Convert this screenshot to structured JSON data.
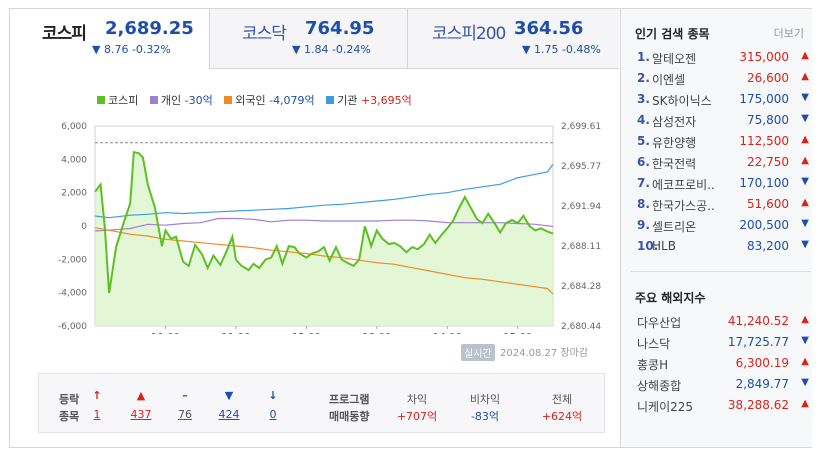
{
  "tabs": [
    {
      "name": "코스피",
      "value": "2,689.25",
      "change": "▼ 8.76 -0.32%",
      "active": true
    },
    {
      "name": "코스닥",
      "value": "764.95",
      "change": "▼ 1.84 -0.24%",
      "active": false
    },
    {
      "name": "코스피200",
      "value": "364.56",
      "change": "▼ 1.75 -0.48%",
      "active": false
    }
  ],
  "legend": [
    {
      "label": "코스피",
      "value": "",
      "color": "#5cc120"
    },
    {
      "label": "개인",
      "value": "-30억",
      "color": "#a07ed0",
      "sign": "neg"
    },
    {
      "label": "외국인",
      "value": "-4,079억",
      "color": "#f08a24",
      "sign": "neg"
    },
    {
      "label": "기관",
      "value": "+3,695억",
      "color": "#3d9ce0",
      "sign": "pos"
    }
  ],
  "chart_data": {
    "type": "line",
    "x_ticks": [
      "10:00",
      "11:00",
      "12:00",
      "13:00",
      "14:00",
      "15:00"
    ],
    "y_left_ticks": [
      "6,000",
      "4,000",
      "2,000",
      "0",
      "-2,000",
      "-4,000",
      "-6,000"
    ],
    "y_right_ticks": [
      "2,699.61",
      "2,695.77",
      "2,691.94",
      "2,688.11",
      "2,684.28",
      "2,680.44"
    ],
    "y_left_range": [
      -6000,
      6000
    ],
    "y_right_range": [
      2680.44,
      2699.61
    ],
    "x_range_hours": [
      9.0,
      15.5
    ],
    "reference_line": 2698.0,
    "series": [
      {
        "name": "코스피",
        "axis": "right",
        "color": "#5cc120",
        "fill": "#d9f3c8",
        "points": [
          [
            9.0,
            2693.3
          ],
          [
            9.08,
            2694.0
          ],
          [
            9.14,
            2689.8
          ],
          [
            9.2,
            2683.6
          ],
          [
            9.3,
            2688.0
          ],
          [
            9.4,
            2690.2
          ],
          [
            9.5,
            2692.2
          ],
          [
            9.55,
            2697.1
          ],
          [
            9.62,
            2697.0
          ],
          [
            9.68,
            2696.6
          ],
          [
            9.75,
            2694.0
          ],
          [
            9.85,
            2691.8
          ],
          [
            9.95,
            2688.1
          ],
          [
            10.0,
            2689.6
          ],
          [
            10.08,
            2688.8
          ],
          [
            10.15,
            2689.0
          ],
          [
            10.25,
            2686.6
          ],
          [
            10.33,
            2686.2
          ],
          [
            10.42,
            2688.2
          ],
          [
            10.52,
            2687.3
          ],
          [
            10.6,
            2686.0
          ],
          [
            10.68,
            2687.2
          ],
          [
            10.78,
            2686.3
          ],
          [
            10.86,
            2687.5
          ],
          [
            10.95,
            2689.0
          ],
          [
            11.0,
            2686.8
          ],
          [
            11.08,
            2686.2
          ],
          [
            11.18,
            2685.8
          ],
          [
            11.25,
            2686.4
          ],
          [
            11.33,
            2686.0
          ],
          [
            11.42,
            2686.8
          ],
          [
            11.5,
            2687.0
          ],
          [
            11.58,
            2688.1
          ],
          [
            11.66,
            2686.4
          ],
          [
            11.75,
            2688.1
          ],
          [
            11.83,
            2688.0
          ],
          [
            11.9,
            2687.4
          ],
          [
            12.0,
            2687.0
          ],
          [
            12.08,
            2687.4
          ],
          [
            12.17,
            2687.6
          ],
          [
            12.25,
            2688.0
          ],
          [
            12.33,
            2686.7
          ],
          [
            12.42,
            2688.0
          ],
          [
            12.5,
            2686.8
          ],
          [
            12.58,
            2686.5
          ],
          [
            12.67,
            2686.2
          ],
          [
            12.75,
            2686.8
          ],
          [
            12.83,
            2690.0
          ],
          [
            12.92,
            2688.1
          ],
          [
            13.0,
            2689.6
          ],
          [
            13.08,
            2688.8
          ],
          [
            13.17,
            2688.3
          ],
          [
            13.25,
            2688.4
          ],
          [
            13.33,
            2688.1
          ],
          [
            13.42,
            2687.5
          ],
          [
            13.5,
            2688.0
          ],
          [
            13.58,
            2687.8
          ],
          [
            13.67,
            2688.3
          ],
          [
            13.75,
            2689.2
          ],
          [
            13.83,
            2688.4
          ],
          [
            13.92,
            2689.2
          ],
          [
            14.0,
            2689.8
          ],
          [
            14.08,
            2690.5
          ],
          [
            14.17,
            2691.8
          ],
          [
            14.25,
            2692.8
          ],
          [
            14.33,
            2691.8
          ],
          [
            14.42,
            2690.7
          ],
          [
            14.5,
            2690.3
          ],
          [
            14.58,
            2691.2
          ],
          [
            14.67,
            2690.3
          ],
          [
            14.75,
            2689.4
          ],
          [
            14.83,
            2690.3
          ],
          [
            14.92,
            2690.6
          ],
          [
            15.0,
            2690.3
          ],
          [
            15.08,
            2691.0
          ],
          [
            15.17,
            2690.0
          ],
          [
            15.25,
            2689.6
          ],
          [
            15.33,
            2689.8
          ],
          [
            15.42,
            2689.5
          ],
          [
            15.5,
            2689.3
          ]
        ]
      },
      {
        "name": "개인",
        "axis": "left",
        "color": "#a07ed0",
        "points": [
          [
            9.0,
            -300
          ],
          [
            9.2,
            -250
          ],
          [
            9.5,
            -150
          ],
          [
            9.75,
            100
          ],
          [
            10.0,
            50
          ],
          [
            10.25,
            150
          ],
          [
            10.5,
            200
          ],
          [
            10.75,
            450
          ],
          [
            11.0,
            450
          ],
          [
            11.25,
            400
          ],
          [
            11.5,
            250
          ],
          [
            11.75,
            350
          ],
          [
            12.0,
            350
          ],
          [
            12.25,
            300
          ],
          [
            12.5,
            300
          ],
          [
            12.75,
            300
          ],
          [
            13.0,
            300
          ],
          [
            13.25,
            350
          ],
          [
            13.5,
            350
          ],
          [
            13.75,
            300
          ],
          [
            14.0,
            200
          ],
          [
            14.25,
            200
          ],
          [
            14.5,
            200
          ],
          [
            14.75,
            200
          ],
          [
            15.0,
            150
          ],
          [
            15.25,
            100
          ],
          [
            15.5,
            -30
          ]
        ]
      },
      {
        "name": "외국인",
        "axis": "left",
        "color": "#f08a24",
        "points": [
          [
            9.0,
            -100
          ],
          [
            9.2,
            -250
          ],
          [
            9.5,
            -500
          ],
          [
            9.75,
            -600
          ],
          [
            10.0,
            -800
          ],
          [
            10.25,
            -900
          ],
          [
            10.5,
            -1000
          ],
          [
            10.75,
            -1100
          ],
          [
            11.0,
            -1200
          ],
          [
            11.25,
            -1300
          ],
          [
            11.5,
            -1450
          ],
          [
            11.75,
            -1550
          ],
          [
            12.0,
            -1650
          ],
          [
            12.25,
            -1800
          ],
          [
            12.5,
            -1900
          ],
          [
            12.75,
            -2050
          ],
          [
            13.0,
            -2200
          ],
          [
            13.25,
            -2300
          ],
          [
            13.5,
            -2500
          ],
          [
            13.75,
            -2700
          ],
          [
            14.0,
            -2900
          ],
          [
            14.25,
            -3100
          ],
          [
            14.5,
            -3200
          ],
          [
            14.75,
            -3350
          ],
          [
            15.0,
            -3500
          ],
          [
            15.25,
            -3650
          ],
          [
            15.42,
            -3750
          ],
          [
            15.5,
            -4079
          ]
        ]
      },
      {
        "name": "기관",
        "axis": "left",
        "color": "#3d9ce0",
        "points": [
          [
            9.0,
            600
          ],
          [
            9.2,
            500
          ],
          [
            9.5,
            650
          ],
          [
            9.75,
            700
          ],
          [
            10.0,
            800
          ],
          [
            10.25,
            750
          ],
          [
            10.5,
            800
          ],
          [
            10.75,
            850
          ],
          [
            11.0,
            900
          ],
          [
            11.25,
            950
          ],
          [
            11.5,
            1000
          ],
          [
            11.75,
            1050
          ],
          [
            12.0,
            1150
          ],
          [
            12.25,
            1250
          ],
          [
            12.5,
            1300
          ],
          [
            12.75,
            1400
          ],
          [
            13.0,
            1500
          ],
          [
            13.25,
            1600
          ],
          [
            13.5,
            1750
          ],
          [
            13.75,
            1900
          ],
          [
            14.0,
            2000
          ],
          [
            14.25,
            2200
          ],
          [
            14.5,
            2350
          ],
          [
            14.75,
            2500
          ],
          [
            15.0,
            2900
          ],
          [
            15.25,
            3100
          ],
          [
            15.42,
            3250
          ],
          [
            15.5,
            3695
          ]
        ]
      }
    ]
  },
  "realtime": {
    "badge": "실시간",
    "date": "2024.08.27 장마감"
  },
  "trade": {
    "label1": "등락",
    "label2": "종목",
    "counts": [
      {
        "symbol": "↑",
        "value": "1",
        "color": "#d8231a"
      },
      {
        "symbol": "▲",
        "value": "437",
        "color": "#d8231a"
      },
      {
        "symbol": "–",
        "value": "76",
        "color": "#555555"
      },
      {
        "symbol": "▼",
        "value": "424",
        "color": "#1d4ea8"
      },
      {
        "symbol": "↓",
        "value": "0",
        "color": "#1d4ea8"
      }
    ],
    "program_label1": "프로그램",
    "program_label2": "매매동향",
    "program": [
      {
        "label": "차익",
        "value": "+707억",
        "sign": "pos"
      },
      {
        "label": "비차익",
        "value": "-83억",
        "sign": "neg"
      },
      {
        "label": "전체",
        "value": "+624억",
        "sign": "pos"
      }
    ]
  },
  "popular": {
    "title": "인기 검색 종목",
    "more": "더보기",
    "items": [
      {
        "rank": "1.",
        "name": "알테오젠",
        "price": "315,000",
        "dir": "up"
      },
      {
        "rank": "2.",
        "name": "이엔셀",
        "price": "26,600",
        "dir": "up"
      },
      {
        "rank": "3.",
        "name": "SK하이닉스",
        "price": "175,000",
        "dir": "down"
      },
      {
        "rank": "4.",
        "name": "삼성전자",
        "price": "75,800",
        "dir": "down"
      },
      {
        "rank": "5.",
        "name": "유한양행",
        "price": "112,500",
        "dir": "up"
      },
      {
        "rank": "6.",
        "name": "한국전력",
        "price": "22,750",
        "dir": "up"
      },
      {
        "rank": "7.",
        "name": "에코프로비..",
        "price": "170,100",
        "dir": "down"
      },
      {
        "rank": "8.",
        "name": "한국가스공..",
        "price": "51,600",
        "dir": "up"
      },
      {
        "rank": "9.",
        "name": "셀트리온",
        "price": "200,500",
        "dir": "down"
      },
      {
        "rank": "10.",
        "name": "HLB",
        "price": "83,200",
        "dir": "down"
      }
    ]
  },
  "overseas": {
    "title": "주요 해외지수",
    "items": [
      {
        "name": "다우산업",
        "price": "41,240.52",
        "dir": "up"
      },
      {
        "name": "나스닥",
        "price": "17,725.77",
        "dir": "down"
      },
      {
        "name": "홍콩H",
        "price": "6,300.19",
        "dir": "up"
      },
      {
        "name": "상해종합",
        "price": "2,849.77",
        "dir": "down"
      },
      {
        "name": "니케이225",
        "price": "38,288.62",
        "dir": "up"
      }
    ]
  },
  "colors": {
    "up": "#d8231a",
    "down": "#1d4ea8"
  }
}
